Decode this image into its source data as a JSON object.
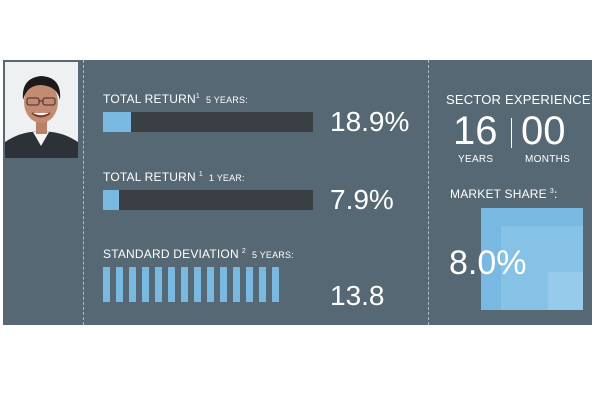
{
  "total_return_5y": {
    "label": "TOTAL RETURN",
    "note": "1",
    "period": "5 YEARS:",
    "value_text": "18.9%",
    "fill_fraction": 0.189
  },
  "total_return_1y": {
    "label": "TOTAL RETURN",
    "note": "1",
    "period": "1 YEAR:",
    "value_text": "7.9%",
    "fill_fraction": 0.079
  },
  "standard_deviation": {
    "label": "STANDARD DEVIATION",
    "note": "2",
    "period": "5 YEARS:",
    "value_text": "13.8",
    "tick_count": 14
  },
  "sector_experience": {
    "label": "SECTOR EXPERIENCE:",
    "years": "16",
    "years_label": "YEARS",
    "months": "00",
    "months_label": "MONTHS"
  },
  "market_share": {
    "label": "MARKET SHARE",
    "note": "3",
    "suffix": ":",
    "value_text": "8.0%"
  },
  "colors": {
    "panel": "#566873",
    "accent": "#79b8e0",
    "track": "#3a3f44"
  }
}
